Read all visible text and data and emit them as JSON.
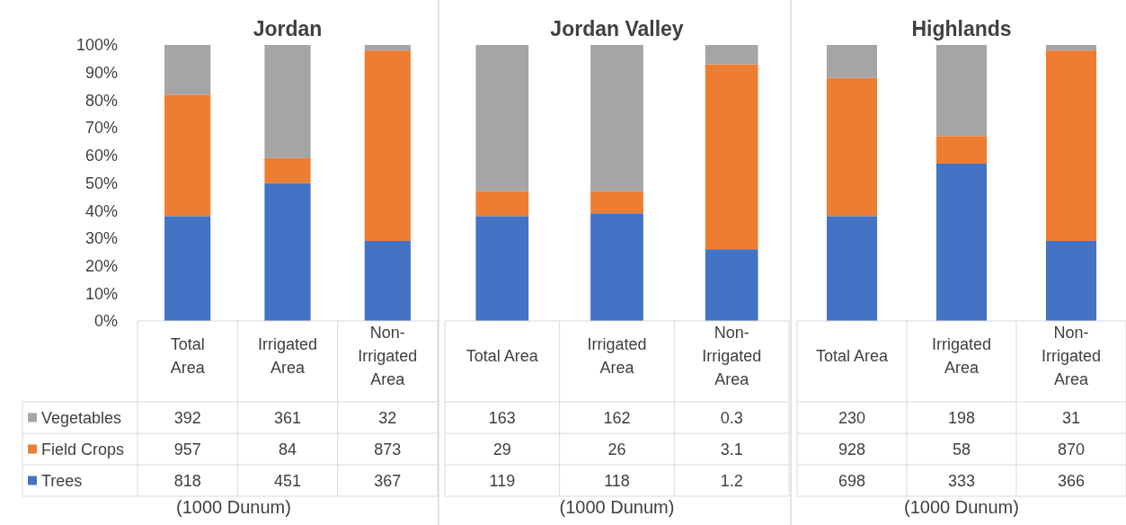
{
  "chart_data": [
    {
      "type": "bar",
      "title": "Jordan",
      "stacked": true,
      "categories": [
        "Total Area",
        "Irrigated Area",
        "Non-Irrigated Area"
      ],
      "ylim": [
        0,
        100
      ],
      "yticks": [
        {
          "value": 0,
          "label": "0%"
        },
        {
          "value": 10,
          "label": "10%"
        },
        {
          "value": 20,
          "label": "20%"
        },
        {
          "value": 30,
          "label": "30%"
        },
        {
          "value": 40,
          "label": "40%"
        },
        {
          "value": 50,
          "label": "50%"
        },
        {
          "value": 60,
          "label": "60%"
        },
        {
          "value": 70,
          "label": "70%"
        },
        {
          "value": 80,
          "label": "80%"
        },
        {
          "value": 90,
          "label": "90%"
        },
        {
          "value": 100,
          "label": "100%"
        }
      ],
      "legend": "bottom left",
      "annotations": [
        "392",
        "361",
        "32",
        "957",
        "84",
        "873",
        "818",
        "451",
        "367",
        "(1000 Dunum)"
      ],
      "series": [
        {
          "name": "Trees",
          "color": "#4472c4",
          "values": [
            38,
            50,
            29
          ]
        },
        {
          "name": "Field Crops",
          "color": "#ed7d31",
          "values": [
            44,
            9,
            69
          ]
        },
        {
          "name": "Vegetables",
          "color": "#a5a5a5",
          "values": [
            18,
            41,
            2
          ]
        }
      ]
    },
    {
      "type": "bar",
      "title": "Jordan Valley",
      "stacked": true,
      "categories": [
        "Total Area",
        "Irrigated Area",
        "Non-Irrigated Area"
      ],
      "ylim": [
        0,
        100
      ],
      "tick_labels": "x",
      "annotations": [
        "163",
        "162",
        "0.3",
        "29",
        "26",
        "3.1",
        "119",
        "118",
        "1.2",
        "(1000 Dunum)"
      ],
      "series": [
        {
          "color": "#4472c4",
          "values": [
            38,
            39,
            26
          ]
        },
        {
          "color": "#ed7d31",
          "values": [
            9,
            8,
            67
          ]
        },
        {
          "color": "#a5a5a5",
          "values": [
            53,
            53,
            7
          ]
        }
      ]
    },
    {
      "type": "bar",
      "title": "Highlands",
      "stacked": true,
      "categories": [
        "Total Area",
        "Irrigated Area",
        "Non-Irrigated Area"
      ],
      "ylim": [
        0,
        100
      ],
      "tick_labels": "x",
      "annotations": [
        "230",
        "198",
        "31",
        "928",
        "58",
        "870",
        "698",
        "333",
        "366",
        "(1000 Dunum)"
      ],
      "series": [
        {
          "color": "#4472c4",
          "values": [
            38,
            57,
            29
          ]
        },
        {
          "color": "#ed7d31",
          "values": [
            50,
            10,
            69
          ]
        },
        {
          "color": "#a5a5a5",
          "values": [
            12,
            33,
            2
          ]
        }
      ]
    }
  ]
}
